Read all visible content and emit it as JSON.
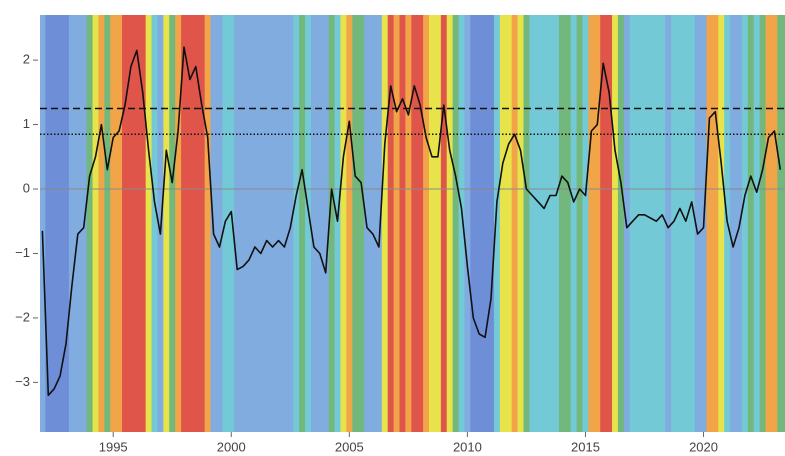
{
  "chart_data": {
    "type": "line",
    "x": [
      1992.0,
      1992.25,
      1992.5,
      1992.75,
      1993.0,
      1993.25,
      1993.5,
      1993.75,
      1994.0,
      1994.25,
      1994.5,
      1994.75,
      1995.0,
      1995.25,
      1995.5,
      1995.75,
      1996.0,
      1996.25,
      1996.5,
      1996.75,
      1997.0,
      1997.25,
      1997.5,
      1997.75,
      1998.0,
      1998.25,
      1998.5,
      1998.75,
      1999.0,
      1999.25,
      1999.5,
      1999.75,
      2000.0,
      2000.25,
      2000.5,
      2000.75,
      2001.0,
      2001.25,
      2001.5,
      2001.75,
      2002.0,
      2002.25,
      2002.5,
      2002.75,
      2003.0,
      2003.25,
      2003.5,
      2003.75,
      2004.0,
      2004.25,
      2004.5,
      2004.75,
      2005.0,
      2005.25,
      2005.5,
      2005.75,
      2006.0,
      2006.25,
      2006.5,
      2006.75,
      2007.0,
      2007.25,
      2007.5,
      2007.75,
      2008.0,
      2008.25,
      2008.5,
      2008.75,
      2009.0,
      2009.25,
      2009.5,
      2009.75,
      2010.0,
      2010.25,
      2010.5,
      2010.75,
      2011.0,
      2011.25,
      2011.5,
      2011.75,
      2012.0,
      2012.25,
      2012.5,
      2012.75,
      2013.0,
      2013.25,
      2013.5,
      2013.75,
      2014.0,
      2014.25,
      2014.5,
      2014.75,
      2015.0,
      2015.25,
      2015.5,
      2015.75,
      2016.0,
      2016.25,
      2016.5,
      2016.75,
      2017.0,
      2017.25,
      2017.5,
      2017.75,
      2018.0,
      2018.25,
      2018.5,
      2018.75,
      2019.0,
      2019.25,
      2019.5,
      2019.75,
      2020.0,
      2020.25,
      2020.5,
      2020.75,
      2021.0,
      2021.25,
      2021.5,
      2021.75,
      2022.0,
      2022.25,
      2022.5,
      2022.75,
      2023.0,
      2023.25
    ],
    "series": [
      {
        "color": "#111111",
        "values": [
          -0.65,
          -3.2,
          -3.1,
          -2.9,
          -2.4,
          -1.5,
          -0.7,
          -0.6,
          0.2,
          0.5,
          1.0,
          0.3,
          0.8,
          0.9,
          1.3,
          1.9,
          2.15,
          1.5,
          0.6,
          -0.2,
          -0.7,
          0.6,
          0.1,
          0.9,
          2.2,
          1.7,
          1.9,
          1.3,
          0.8,
          -0.7,
          -0.9,
          -0.5,
          -0.35,
          -1.25,
          -1.2,
          -1.1,
          -0.9,
          -1.0,
          -0.8,
          -0.9,
          -0.8,
          -0.9,
          -0.6,
          -0.1,
          0.3,
          -0.3,
          -0.9,
          -1.0,
          -1.3,
          0.0,
          -0.5,
          0.5,
          1.05,
          0.2,
          0.1,
          -0.6,
          -0.7,
          -0.9,
          0.7,
          1.6,
          1.2,
          1.4,
          1.15,
          1.6,
          1.3,
          0.8,
          0.5,
          0.5,
          1.3,
          0.6,
          0.2,
          -0.3,
          -1.2,
          -2.0,
          -2.25,
          -2.3,
          -1.7,
          -0.2,
          0.4,
          0.7,
          0.85,
          0.6,
          0.0,
          -0.1,
          -0.2,
          -0.3,
          -0.1,
          -0.1,
          0.2,
          0.1,
          -0.2,
          0.0,
          -0.1,
          0.9,
          1.0,
          1.95,
          1.5,
          0.6,
          0.1,
          -0.6,
          -0.5,
          -0.4,
          -0.4,
          -0.45,
          -0.5,
          -0.4,
          -0.6,
          -0.5,
          -0.3,
          -0.5,
          -0.2,
          -0.7,
          -0.6,
          1.1,
          1.2,
          0.4,
          -0.5,
          -0.9,
          -0.6,
          -0.1,
          0.2,
          -0.05,
          0.3,
          0.8,
          0.9,
          0.3
        ]
      }
    ],
    "xlim": [
      1991.9,
      2023.45
    ],
    "ylim": [
      -3.77,
      2.7
    ],
    "xticks": [
      1995,
      2000,
      2005,
      2010,
      2015,
      2020
    ],
    "yticks": [
      {
        "value": -3,
        "label": "−3"
      },
      {
        "value": -2,
        "label": "−2"
      },
      {
        "value": -1,
        "label": "−1"
      },
      0,
      1,
      2
    ],
    "zeroline": true,
    "reference_lines": [
      {
        "value": 1.25,
        "style": "dashed"
      },
      {
        "value": 0.85,
        "style": "dotted"
      }
    ],
    "stripe_thresholds": [
      -1.5,
      -0.5,
      0,
      0.4,
      0.8,
      1.3
    ],
    "stripe_colors": [
      "#6f8ed8",
      "#80acdf",
      "#74c9d6",
      "#72b87c",
      "#e6e44a",
      "#f1a548",
      "#e0554a"
    ]
  }
}
